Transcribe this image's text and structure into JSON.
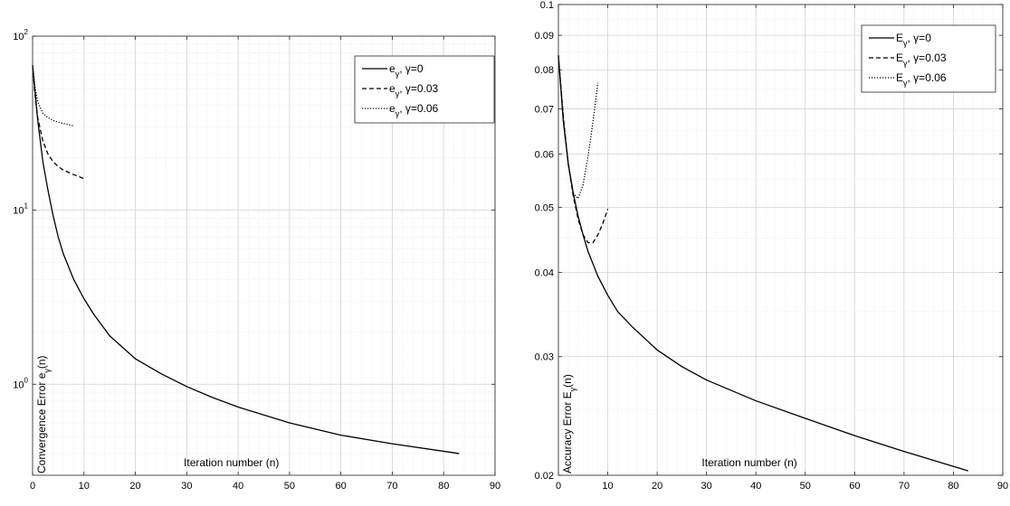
{
  "chart_data": [
    {
      "type": "line",
      "title": "",
      "xlabel": "Iteration number (n)",
      "ylabel": {
        "main": "Convergence Error e",
        "sub": "γ",
        "tail": "(n)"
      },
      "xlim": [
        0,
        90
      ],
      "ylim": [
        0.3,
        100
      ],
      "yscale": "log",
      "grid": true,
      "legend": "top-right",
      "xticks": [
        0,
        10,
        20,
        30,
        40,
        50,
        60,
        70,
        80,
        90
      ],
      "yticks": [
        {
          "value": 1,
          "base": "10",
          "exp": "0"
        },
        {
          "value": 10,
          "base": "10",
          "exp": "1"
        },
        {
          "value": 100,
          "base": "10",
          "exp": "2"
        }
      ],
      "series": [
        {
          "legend": {
            "main": "e",
            "sub": "γ",
            "tail": ", γ=0"
          },
          "dash": "solid",
          "x": [
            0,
            1,
            2,
            3,
            4,
            5,
            6,
            8,
            10,
            12,
            15,
            20,
            25,
            30,
            35,
            40,
            50,
            60,
            70,
            83
          ],
          "y": [
            68,
            33,
            19,
            13,
            9.3,
            7.0,
            5.6,
            4.0,
            3.1,
            2.5,
            1.9,
            1.4,
            1.15,
            0.97,
            0.84,
            0.74,
            0.6,
            0.51,
            0.455,
            0.4
          ]
        },
        {
          "legend": {
            "main": "e",
            "sub": "γ",
            "tail": ", γ=0.03"
          },
          "dash": "dashed",
          "x": [
            0,
            0.5,
            1,
            2,
            3,
            4,
            5,
            6,
            7,
            8,
            9,
            10
          ],
          "y": [
            68,
            45,
            34,
            25,
            21,
            19,
            17.8,
            17,
            16.5,
            16,
            15.6,
            15.2
          ]
        },
        {
          "legend": {
            "main": "e",
            "sub": "γ",
            "tail": ", γ=0.06"
          },
          "dash": "dotted",
          "x": [
            0,
            0.5,
            1,
            2,
            3,
            4,
            5,
            6,
            7,
            8
          ],
          "y": [
            68,
            50,
            42,
            36,
            34,
            32.8,
            32,
            31.5,
            31,
            30.5
          ]
        }
      ]
    },
    {
      "type": "line",
      "title": "",
      "xlabel": "Iteration number (n)",
      "ylabel": {
        "main": "Accuracy Error E",
        "sub": "γ",
        "tail": "(n)"
      },
      "xlim": [
        0,
        90
      ],
      "ylim": [
        0.02,
        0.1
      ],
      "yscale": "log",
      "grid": true,
      "legend": "top-right",
      "xticks": [
        0,
        10,
        20,
        30,
        40,
        50,
        60,
        70,
        80,
        90
      ],
      "yticks": [
        {
          "value": 0.02,
          "label": "0.02"
        },
        {
          "value": 0.03,
          "label": "0.03"
        },
        {
          "value": 0.04,
          "label": "0.04"
        },
        {
          "value": 0.05,
          "label": "0.05"
        },
        {
          "value": 0.06,
          "label": "0.06"
        },
        {
          "value": 0.07,
          "label": "0.07"
        },
        {
          "value": 0.08,
          "label": "0.08"
        },
        {
          "value": 0.09,
          "label": "0.09"
        },
        {
          "value": 0.1,
          "label": "0.1"
        }
      ],
      "series": [
        {
          "legend": {
            "main": "E",
            "sub": "γ",
            "tail": ", γ=0"
          },
          "dash": "solid",
          "x": [
            0,
            1,
            2,
            3,
            4,
            5,
            6,
            8,
            10,
            12,
            15,
            20,
            25,
            30,
            40,
            50,
            60,
            70,
            83
          ],
          "y": [
            0.084,
            0.067,
            0.058,
            0.0525,
            0.0485,
            0.0455,
            0.043,
            0.0395,
            0.037,
            0.035,
            0.0332,
            0.0307,
            0.029,
            0.0277,
            0.0258,
            0.0243,
            0.0229,
            0.0217,
            0.0203
          ]
        },
        {
          "legend": {
            "main": "E",
            "sub": "γ",
            "tail": ", γ=0.03"
          },
          "dash": "dashed",
          "x": [
            0,
            1,
            2,
            3,
            4,
            5,
            6,
            7,
            8,
            9,
            10
          ],
          "y": [
            0.084,
            0.068,
            0.058,
            0.052,
            0.048,
            0.0455,
            0.0443,
            0.0443,
            0.0455,
            0.0473,
            0.0497
          ]
        },
        {
          "legend": {
            "main": "E",
            "sub": "γ",
            "tail": ", γ=0.06"
          },
          "dash": "dotted",
          "x": [
            0,
            1,
            2,
            3,
            4,
            5,
            6,
            7,
            8
          ],
          "y": [
            0.084,
            0.068,
            0.058,
            0.0525,
            0.0515,
            0.054,
            0.0595,
            0.067,
            0.0765
          ]
        }
      ]
    }
  ]
}
